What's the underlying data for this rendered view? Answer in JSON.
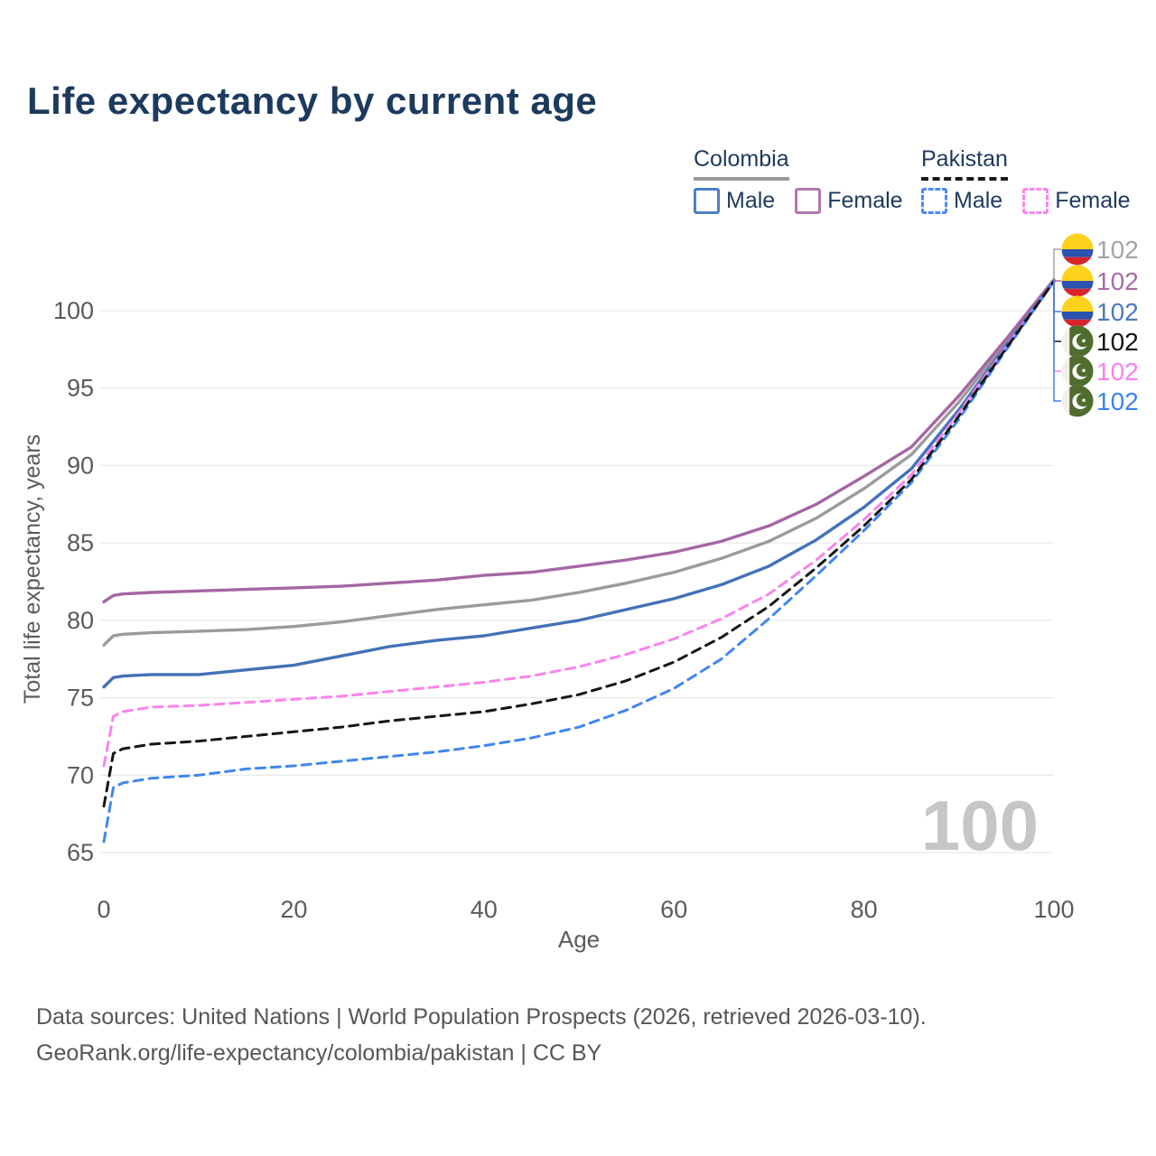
{
  "page": {
    "title": "Life expectancy by current age"
  },
  "legend": {
    "groups": [
      {
        "name": "Colombia",
        "line_style": "solid",
        "underline_color": "#999999",
        "items": [
          {
            "label": "Male",
            "swatch_color": "#4f7fc4",
            "dashed": false
          },
          {
            "label": "Female",
            "swatch_color": "#b477b0",
            "dashed": false
          }
        ]
      },
      {
        "name": "Pakistan",
        "line_style": "dashed",
        "underline_color": "#1a1a1a",
        "items": [
          {
            "label": "Male",
            "swatch_color": "#4b8bf5",
            "dashed": true
          },
          {
            "label": "Female",
            "swatch_color": "#fb84ee",
            "dashed": true
          }
        ]
      }
    ]
  },
  "chart_data": {
    "type": "line",
    "title": "Life expectancy by current age",
    "xlabel": "Age",
    "ylabel": "Total life expectancy, years",
    "xlim": [
      0,
      100
    ],
    "ylim": [
      65,
      100
    ],
    "xticks": [
      0,
      20,
      40,
      60,
      80,
      100
    ],
    "yticks": [
      65,
      70,
      75,
      80,
      85,
      90,
      95,
      100
    ],
    "grid": "horizontal",
    "grid_color": "#eaeaea",
    "tick_color": "#5b5b5b",
    "watermark": "100",
    "x": [
      0,
      1,
      2,
      5,
      10,
      15,
      20,
      25,
      30,
      35,
      40,
      45,
      50,
      55,
      60,
      65,
      70,
      75,
      80,
      85,
      90,
      95,
      100
    ],
    "series": [
      {
        "name": "Colombia Total",
        "country": "Colombia",
        "color": "#9b9b9b",
        "dashed": false,
        "values": [
          78.4,
          79.0,
          79.1,
          79.2,
          79.3,
          79.4,
          79.6,
          79.9,
          80.3,
          80.7,
          81.0,
          81.3,
          81.8,
          82.4,
          83.1,
          84.0,
          85.1,
          86.6,
          88.5,
          90.7,
          94.1,
          98.0,
          101.9
        ]
      },
      {
        "name": "Colombia Female",
        "country": "Colombia",
        "color": "#a566a3",
        "dashed": false,
        "values": [
          81.2,
          81.6,
          81.7,
          81.8,
          81.9,
          82.0,
          82.1,
          82.2,
          82.4,
          82.6,
          82.9,
          83.1,
          83.5,
          83.9,
          84.4,
          85.1,
          86.1,
          87.5,
          89.3,
          91.2,
          94.5,
          98.2,
          102.0
        ]
      },
      {
        "name": "Colombia Male",
        "country": "Colombia",
        "color": "#4272b8",
        "dashed": false,
        "values": [
          75.7,
          76.3,
          76.4,
          76.5,
          76.5,
          76.8,
          77.1,
          77.7,
          78.3,
          78.7,
          79.0,
          79.5,
          80.0,
          80.7,
          81.4,
          82.3,
          83.5,
          85.2,
          87.3,
          89.8,
          93.6,
          97.8,
          101.9
        ]
      },
      {
        "name": "Pakistan Female",
        "country": "Pakistan",
        "color": "#fb83ec",
        "dashed": true,
        "values": [
          70.6,
          73.8,
          74.1,
          74.4,
          74.5,
          74.7,
          74.9,
          75.1,
          75.4,
          75.7,
          76.0,
          76.4,
          77.0,
          77.8,
          78.8,
          80.1,
          81.7,
          83.9,
          86.5,
          89.4,
          93.4,
          97.7,
          101.9
        ]
      },
      {
        "name": "Pakistan Male",
        "country": "Pakistan",
        "color": "#4186f0",
        "dashed": true,
        "values": [
          65.7,
          69.2,
          69.5,
          69.8,
          70.0,
          70.4,
          70.6,
          70.9,
          71.2,
          71.5,
          71.9,
          72.4,
          73.1,
          74.2,
          75.6,
          77.5,
          80.1,
          82.9,
          85.8,
          88.9,
          93.0,
          97.5,
          101.9
        ]
      },
      {
        "name": "Pakistan Total",
        "country": "Pakistan",
        "color": "#161616",
        "dashed": true,
        "values": [
          68.0,
          71.4,
          71.7,
          72.0,
          72.2,
          72.5,
          72.8,
          73.1,
          73.5,
          73.8,
          74.1,
          74.6,
          75.2,
          76.1,
          77.3,
          78.9,
          80.9,
          83.4,
          86.1,
          89.1,
          93.2,
          97.6,
          101.9
        ]
      }
    ],
    "end_labels": [
      {
        "value": "102",
        "series": "Colombia Total",
        "flag": "colombia",
        "color": "#a3a3a3"
      },
      {
        "value": "102",
        "series": "Colombia Female",
        "flag": "colombia",
        "color": "#a56ca5"
      },
      {
        "value": "102",
        "series": "Colombia Male",
        "flag": "colombia",
        "color": "#4d79bd"
      },
      {
        "value": "102",
        "series": "Pakistan Total",
        "flag": "pakistan",
        "color": "#111111"
      },
      {
        "value": "102",
        "series": "Pakistan Female",
        "flag": "pakistan",
        "color": "#fb80f0"
      },
      {
        "value": "102",
        "series": "Pakistan Male",
        "flag": "pakistan",
        "color": "#3b82f6"
      }
    ],
    "flag_colors": {
      "colombia_yellow": "#fcd21c",
      "colombia_blue": "#2a52ae",
      "colombia_red": "#d8252c",
      "pakistan_green": "#4f6d2d",
      "pakistan_white": "#f2f0eb"
    }
  },
  "footer": {
    "line1": "Data sources: United Nations | World Population Prospects (2026, retrieved 2026-03-10).",
    "line2": "GeoRank.org/life-expectancy/colombia/pakistan | CC BY"
  }
}
